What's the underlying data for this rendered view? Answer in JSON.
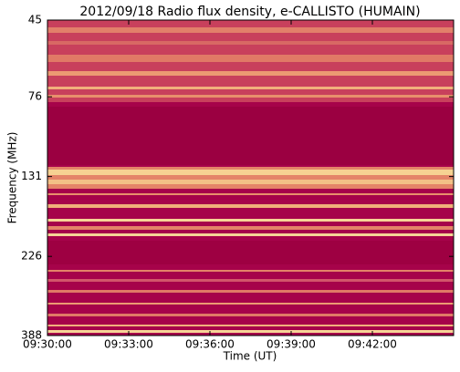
{
  "chart_data": {
    "type": "spectrogram",
    "title": "2012/09/18  Radio flux density, e-CALLISTO (HUMAIN)",
    "x_label": "Time (UT)",
    "y_label": "Frequency (MHz)",
    "xlim": [
      570,
      585
    ],
    "xticks": [
      {
        "value": 570,
        "label": "09:30:00"
      },
      {
        "value": 573,
        "label": "09:33:00"
      },
      {
        "value": 576,
        "label": "09:36:00"
      },
      {
        "value": 579,
        "label": "09:39:00"
      },
      {
        "value": 582,
        "label": "09:42:00"
      }
    ],
    "ylim": [
      45,
      388
    ],
    "y_log": true,
    "y_inverted": true,
    "yticks": [
      45,
      76,
      131,
      226,
      388
    ]
  }
}
